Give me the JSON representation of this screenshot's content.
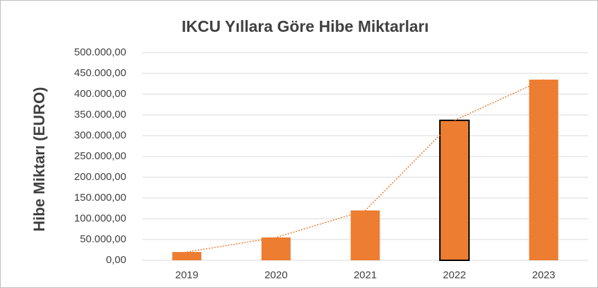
{
  "chart_data": {
    "type": "bar",
    "title": "IKCU Yıllara Göre Hibe Miktarları",
    "ylabel": "Hibe Miktarı (EURO)",
    "categories": [
      "2019",
      "2020",
      "2021",
      "2022",
      "2023"
    ],
    "values": [
      20000,
      55000,
      120000,
      337000,
      435000
    ],
    "color": "#ed7d31",
    "bar_edge_colors": [
      null,
      null,
      null,
      "#000000",
      null
    ],
    "connect_line": true,
    "line_color": "#ed7d31",
    "ylim": [
      0,
      500000
    ],
    "yticks": [
      {
        "value": 0,
        "label": "0,00"
      },
      {
        "value": 50000,
        "label": "50.000,00"
      },
      {
        "value": 100000,
        "label": "100.000,00"
      },
      {
        "value": 150000,
        "label": "150.000,00"
      },
      {
        "value": 200000,
        "label": "200.000,00"
      },
      {
        "value": 250000,
        "label": "250.000,00"
      },
      {
        "value": 300000,
        "label": "300.000,00"
      },
      {
        "value": 350000,
        "label": "350.000,00"
      },
      {
        "value": 400000,
        "label": "400.000,00"
      },
      {
        "value": 450000,
        "label": "450.000,00"
      },
      {
        "value": 500000,
        "label": "500.000,00"
      }
    ],
    "grid": true
  }
}
